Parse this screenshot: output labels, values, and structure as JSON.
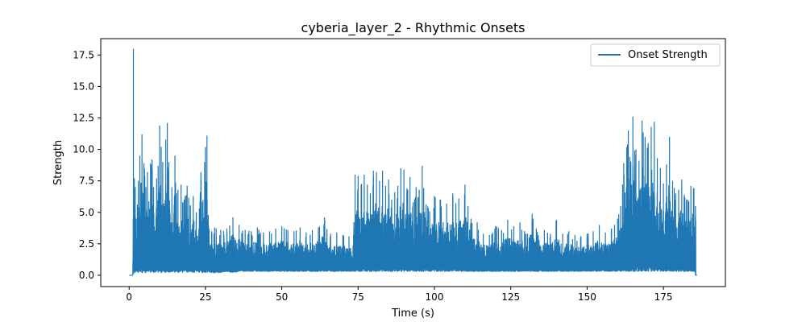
{
  "chart_data": {
    "type": "line",
    "title": "cyberia_layer_2 - Rhythmic Onsets",
    "xlabel": "Time (s)",
    "ylabel": "Strength",
    "xlim": [
      -9.3,
      195.3
    ],
    "ylim": [
      -0.9,
      18.8
    ],
    "x_ticks": [
      0,
      25,
      50,
      75,
      100,
      125,
      150,
      175
    ],
    "y_ticks": [
      0.0,
      2.5,
      5.0,
      7.5,
      10.0,
      12.5,
      15.0,
      17.5
    ],
    "x_tick_labels": [
      "0",
      "25",
      "50",
      "75",
      "100",
      "125",
      "150",
      "175"
    ],
    "y_tick_labels": [
      "0.0",
      "2.5",
      "5.0",
      "7.5",
      "10.0",
      "12.5",
      "15.0",
      "17.5"
    ],
    "grid": false,
    "legend_position": "top-right",
    "duration": 186,
    "series": [
      {
        "name": "Onset Strength",
        "color": "#1f77b4",
        "x": [
          0,
          1.2,
          1.4,
          1.5,
          1.7,
          2,
          2.3,
          3,
          3.5,
          4.2,
          5,
          5.5,
          6,
          7,
          7.5,
          8,
          9,
          9.5,
          10,
          10.5,
          11,
          12,
          12.5,
          13,
          14,
          15,
          15.5,
          16,
          17,
          17.5,
          18,
          19,
          20,
          21,
          22,
          23,
          23.5,
          24,
          25,
          25.5,
          26,
          27,
          28,
          30,
          32,
          34,
          36,
          38,
          40,
          42,
          44,
          46,
          48,
          50,
          52,
          54,
          56,
          58,
          60,
          62,
          64,
          66,
          68,
          70,
          72,
          73.5,
          74,
          75,
          76,
          77,
          78,
          79,
          80,
          81,
          82,
          83,
          84,
          85,
          86,
          87,
          88,
          89,
          90,
          91,
          92,
          93,
          94,
          95,
          96,
          98,
          100,
          102,
          104,
          106,
          108,
          110,
          111,
          112,
          114,
          116,
          118,
          120,
          122,
          124,
          126,
          128,
          130,
          132,
          134,
          136,
          138,
          140,
          142,
          144,
          146,
          148,
          150,
          152,
          154,
          156,
          158,
          159,
          160,
          161,
          162,
          163,
          163.5,
          164,
          165,
          166,
          167,
          168,
          169,
          170,
          171,
          172,
          173,
          174,
          175,
          176,
          177,
          178,
          179,
          180,
          181,
          182,
          183,
          184,
          185,
          185.5,
          186
        ],
        "min": [
          0,
          0,
          0.3,
          0.1,
          0.3,
          0.2,
          0.3,
          0.2,
          0.3,
          0.2,
          0.3,
          0.2,
          0.3,
          0.2,
          0.3,
          0.2,
          0.3,
          0.2,
          0.3,
          0.2,
          0.3,
          0.2,
          0.3,
          0.2,
          0.3,
          0.2,
          0.3,
          0.2,
          0.3,
          0.2,
          0.3,
          0.2,
          0.3,
          0.2,
          0.3,
          0.2,
          0.3,
          0.2,
          0.2,
          0.2,
          0.3,
          0.2,
          0.2,
          0.2,
          0.3,
          0.2,
          0.3,
          0.3,
          0.3,
          0.3,
          0.3,
          0.3,
          0.3,
          0.3,
          0.3,
          0.3,
          0.3,
          0.3,
          0.3,
          0.3,
          0.3,
          0.3,
          0.3,
          0.3,
          0.3,
          0.3,
          0.3,
          0.3,
          0.3,
          0.3,
          0.3,
          0.3,
          0.3,
          0.3,
          0.3,
          0.3,
          0.3,
          0.3,
          0.3,
          0.3,
          0.3,
          0.3,
          0.3,
          0.3,
          0.3,
          0.3,
          0.3,
          0.3,
          0.3,
          0.3,
          0.3,
          0.3,
          0.3,
          0.3,
          0.3,
          0.3,
          0.3,
          0.3,
          0.3,
          0.3,
          0.3,
          0.3,
          0.3,
          0.3,
          0.3,
          0.3,
          0.3,
          0.3,
          0.3,
          0.3,
          0.3,
          0.3,
          0.3,
          0.3,
          0.3,
          0.3,
          0.3,
          0.3,
          0.3,
          0.3,
          0.3,
          0.3,
          0.3,
          0.3,
          0.3,
          0.3,
          0.3,
          0.3,
          0.3,
          0.3,
          0.3,
          0.3,
          0.3,
          0.3,
          0.3,
          0.3,
          0.3,
          0.3,
          0.3,
          0.3,
          0.3,
          0.3,
          0.3,
          0.3,
          0.3,
          0.3,
          0.3,
          0.3,
          0.3,
          0,
          0
        ],
        "max": [
          0,
          0,
          18.0,
          5.5,
          7.7,
          7.0,
          4.5,
          7.5,
          9.5,
          11.2,
          8.5,
          7.0,
          8.2,
          8.9,
          9.2,
          7.0,
          7.7,
          8.7,
          11.9,
          10.2,
          9.0,
          10.8,
          12.1,
          9.0,
          7.0,
          9.5,
          6.5,
          6.8,
          7.2,
          5.8,
          6.0,
          7.1,
          5.5,
          6.3,
          5.0,
          5.3,
          8.2,
          5.8,
          10.2,
          11.1,
          4.0,
          3.5,
          3.8,
          3.6,
          3.7,
          4.6,
          4.0,
          3.6,
          3.5,
          3.8,
          3.4,
          3.5,
          3.7,
          3.9,
          3.6,
          3.5,
          3.8,
          3.4,
          3.6,
          3.8,
          4.6,
          3.3,
          3.4,
          3.2,
          3.1,
          3.2,
          8.0,
          7.9,
          7.2,
          8.0,
          7.2,
          6.5,
          8.3,
          8.2,
          7.5,
          8.3,
          7.1,
          7.6,
          6.0,
          6.6,
          7.1,
          8.5,
          8.4,
          6.9,
          7.8,
          5.8,
          7.0,
          6.8,
          8.7,
          5.3,
          6.3,
          6.0,
          5.7,
          6.5,
          6.1,
          7.2,
          5.5,
          4.5,
          4.2,
          3.3,
          3.2,
          3.9,
          3.6,
          4.4,
          3.9,
          4.2,
          3.3,
          4.9,
          3.2,
          3.6,
          3.3,
          4.4,
          3.3,
          3.5,
          3.2,
          3.1,
          3.3,
          3.5,
          4.0,
          3.4,
          3.7,
          4.0,
          4.5,
          5.5,
          8.9,
          10.2,
          11.5,
          9.4,
          12.6,
          10.0,
          9.1,
          12.3,
          11.0,
          10.5,
          11.8,
          12.2,
          9.3,
          8.5,
          7.3,
          8.8,
          11.0,
          7.5,
          6.5,
          6.8,
          7.6,
          6.2,
          6.0,
          7.1,
          6.9,
          5.5,
          2.6,
          0
        ]
      }
    ]
  }
}
